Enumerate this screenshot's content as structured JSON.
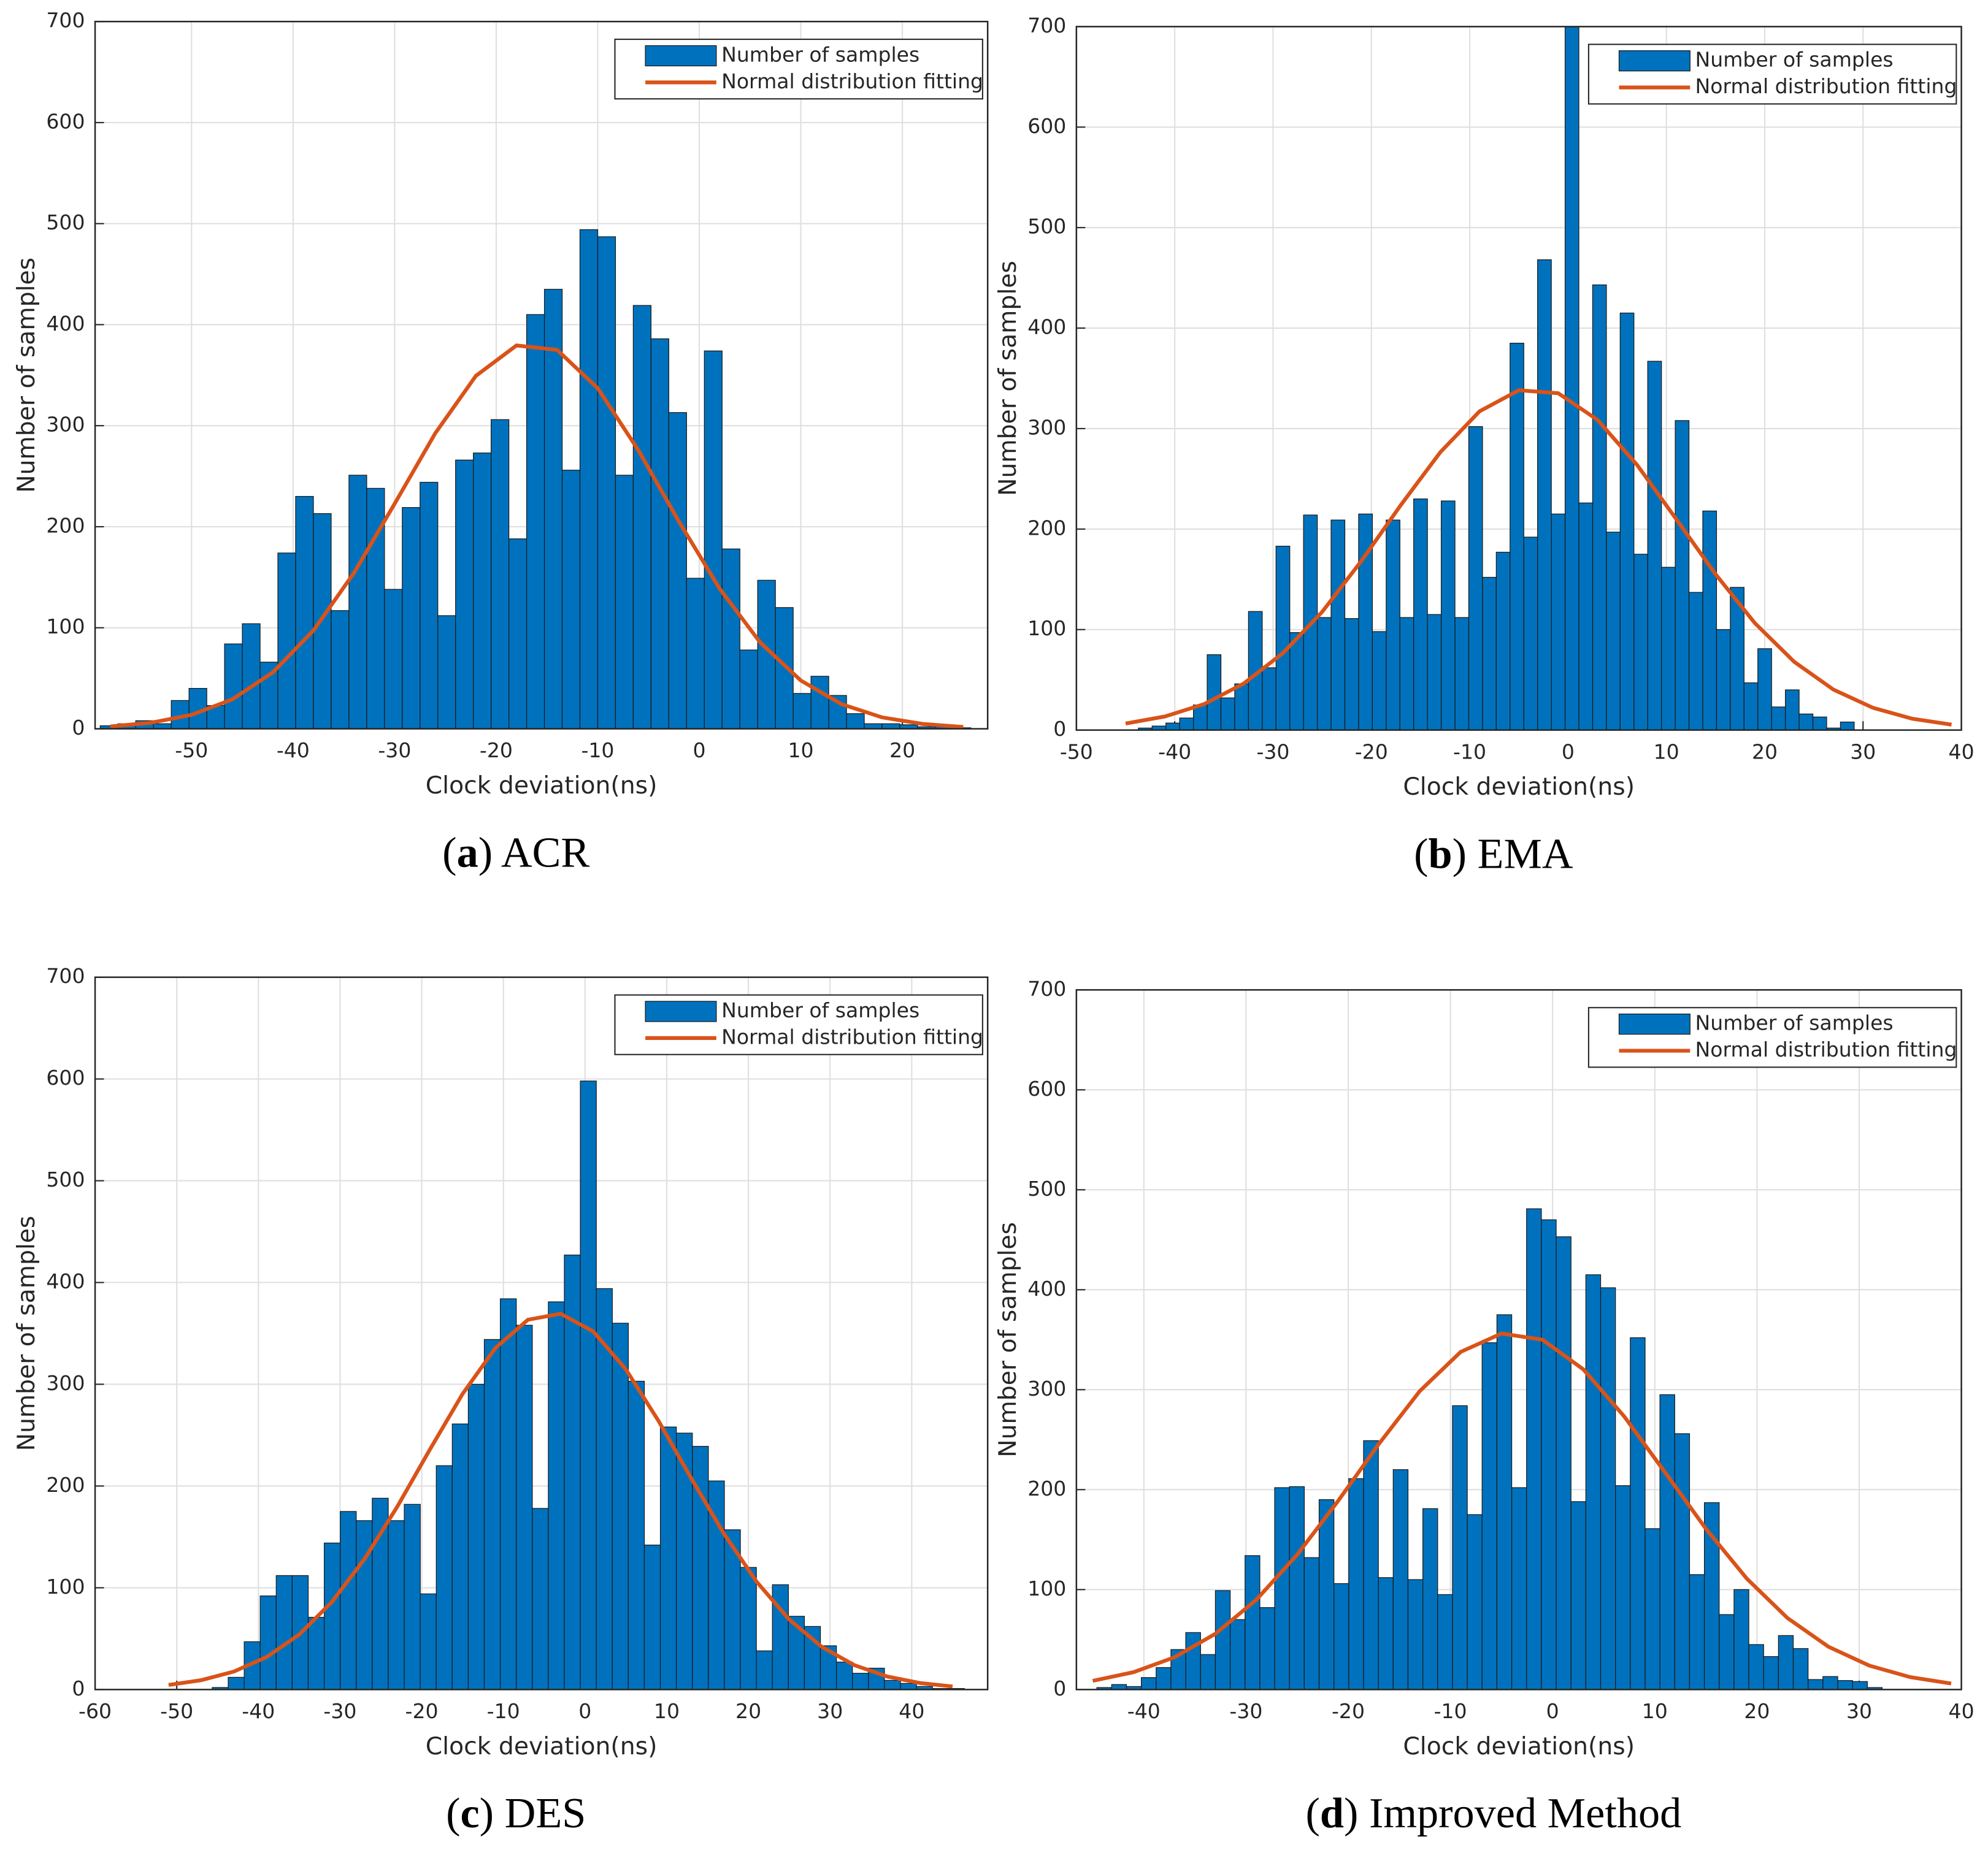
{
  "chart_data": [
    {
      "type": "histogram",
      "caption": [
        "(",
        "a",
        ") ACR"
      ],
      "xlabel": "Clock deviation(ns)",
      "ylabel": "Number of samples",
      "xlim": [
        -59.5,
        28.4
      ],
      "xticks": [
        -50,
        -40,
        -30,
        -20,
        -10,
        0,
        10,
        20
      ],
      "ylim": [
        0,
        700
      ],
      "yticks": [
        0,
        100,
        200,
        300,
        400,
        500,
        600,
        700
      ],
      "grid": true,
      "legend": "upper right",
      "bins": [
        -59,
        -57.25,
        -55.5,
        -53.75,
        -52,
        -50.25,
        -48.5,
        -46.75,
        -45,
        -43.25,
        -41.5,
        -39.75,
        -38,
        -36.25,
        -34.5,
        -32.75,
        -31,
        -29.25,
        -27.5,
        -25.75,
        -24,
        -22.25,
        -20.5,
        -18.75,
        -17,
        -15.25,
        -13.5,
        -11.75,
        -10,
        -8.25,
        -6.5,
        -4.75,
        -3,
        -1.25,
        0.5,
        2.25,
        4,
        5.75,
        7.5,
        9.25,
        11,
        12.75,
        14.5,
        16.25,
        18,
        19.75,
        21.5,
        23.25,
        25,
        26.75
      ],
      "series": [
        {
          "name": "Number of samples",
          "color": "#0072bd",
          "values": [
            3,
            5,
            8,
            5,
            28,
            40,
            23,
            84,
            104,
            66,
            174,
            230,
            213,
            117,
            251,
            238,
            138,
            219,
            244,
            112,
            266,
            273,
            306,
            188,
            410,
            435,
            256,
            494,
            487,
            251,
            419,
            386,
            313,
            149,
            374,
            178,
            78,
            147,
            120,
            35,
            52,
            33,
            15,
            5,
            5,
            4,
            2,
            2,
            1
          ]
        },
        {
          "name": "Normal distribution fitting",
          "color": "#d95319",
          "type": "line",
          "x": [
            -58,
            -54,
            -50,
            -46,
            -42,
            -38,
            -34,
            -30,
            -26,
            -22,
            -18,
            -14,
            -10,
            -6,
            -2,
            2,
            6,
            10,
            14,
            18,
            22,
            26
          ],
          "values": [
            2.3,
            6.0,
            13.8,
            29.1,
            55.8,
            97.3,
            154.4,
            222.8,
            292.5,
            349.3,
            379.4,
            375,
            337.1,
            275.7,
            205.1,
            138.8,
            85.4,
            47.8,
            24.4,
            11.3,
            4.8,
            1.8
          ]
        }
      ]
    },
    {
      "type": "histogram",
      "caption": [
        "(",
        "b",
        ") EMA"
      ],
      "xlabel": "Clock deviation(ns)",
      "ylabel": "Number of samples",
      "xlim": [
        -50,
        40
      ],
      "xticks": [
        -50,
        -40,
        -30,
        -20,
        -10,
        0,
        10,
        20,
        30,
        40
      ],
      "ylim": [
        0,
        700
      ],
      "yticks": [
        0,
        100,
        200,
        300,
        400,
        500,
        600,
        700
      ],
      "grid": true,
      "legend": "upper right",
      "bins": [
        -43.7,
        -42.3,
        -40.9,
        -39.5,
        -38.1,
        -36.7,
        -35.3,
        -33.9,
        -32.5,
        -31.1,
        -29.7,
        -28.3,
        -26.9,
        -25.5,
        -24.1,
        -22.7,
        -21.3,
        -19.9,
        -18.5,
        -17.1,
        -15.7,
        -14.3,
        -12.9,
        -11.5,
        -10.1,
        -8.7,
        -7.3,
        -5.9,
        -4.5,
        -3.1,
        -1.7,
        -0.3,
        1.1,
        2.5,
        3.9,
        5.3,
        6.7,
        8.1,
        9.5,
        10.9,
        12.3,
        13.7,
        15.1,
        16.5,
        17.9,
        19.3,
        20.7,
        22.1,
        23.5,
        24.9,
        26.3,
        27.7,
        29.1
      ],
      "series": [
        {
          "name": "Number of samples",
          "color": "#0072bd",
          "values": [
            2,
            4,
            7,
            12,
            25,
            75,
            32,
            46,
            118,
            62,
            183,
            97,
            214,
            112,
            209,
            111,
            215,
            98,
            209,
            112,
            230,
            115,
            228,
            112,
            302,
            152,
            177,
            385,
            192,
            468,
            215,
            700,
            226,
            443,
            197,
            415,
            175,
            367,
            162,
            308,
            137,
            218,
            100,
            142,
            47,
            81,
            23,
            40,
            16,
            13,
            2,
            8
          ]
        },
        {
          "name": "Normal distribution fitting",
          "color": "#d95319",
          "type": "line",
          "x": [
            -45,
            -41,
            -37,
            -33,
            -29,
            -25,
            -21,
            -17,
            -13,
            -9,
            -5,
            -1,
            3,
            7,
            11,
            15,
            19,
            23,
            27,
            31,
            35,
            39
          ],
          "values": [
            6.5,
            13.5,
            25.9,
            46.2,
            76.6,
            117.7,
            168.5,
            224,
            276.4,
            317.2,
            338.2,
            335.2,
            308.6,
            264.1,
            209.9,
            155.1,
            106.4,
            67.9,
            40.2,
            22.2,
            11.3,
            5.4
          ]
        }
      ]
    },
    {
      "type": "histogram",
      "caption": [
        "(",
        "c",
        ") DES"
      ],
      "xlabel": "Clock deviation(ns)",
      "ylabel": "Number of samples",
      "xlim": [
        -60,
        49.3
      ],
      "xticks": [
        -60,
        -50,
        -40,
        -30,
        -20,
        -10,
        0,
        10,
        20,
        30,
        40
      ],
      "ylim": [
        0,
        700
      ],
      "yticks": [
        0,
        100,
        200,
        300,
        400,
        500,
        600,
        700
      ],
      "grid": true,
      "legend": "upper right",
      "bins": [
        -45.66,
        -43.7,
        -41.74,
        -39.78,
        -37.82,
        -35.86,
        -33.9,
        -31.94,
        -29.98,
        -28.02,
        -26.06,
        -24.1,
        -22.14,
        -20.18,
        -18.22,
        -16.26,
        -14.3,
        -12.34,
        -10.38,
        -8.42,
        -6.46,
        -4.5,
        -2.54,
        -0.58,
        1.38,
        3.34,
        5.3,
        7.26,
        9.22,
        11.18,
        13.14,
        15.1,
        17.06,
        19.02,
        20.98,
        22.94,
        24.9,
        26.86,
        28.82,
        30.78,
        32.74,
        34.7,
        36.66,
        38.62,
        40.58,
        42.54,
        44.5,
        46.46
      ],
      "series": [
        {
          "name": "Number of samples",
          "color": "#0072bd",
          "values": [
            2,
            12,
            47,
            92,
            112,
            112,
            71,
            144,
            175,
            166,
            188,
            166,
            182,
            94,
            220,
            261,
            300,
            344,
            384,
            358,
            178,
            381,
            427,
            598,
            394,
            360,
            303,
            142,
            258,
            252,
            239,
            205,
            157,
            120,
            38,
            103,
            72,
            62,
            43,
            27,
            16,
            21,
            9,
            6,
            3,
            1,
            1
          ]
        },
        {
          "name": "Normal distribution fitting",
          "color": "#d95319",
          "type": "line",
          "x": [
            -51,
            -47,
            -43,
            -39,
            -35,
            -31,
            -27,
            -23,
            -19,
            -15,
            -11,
            -7,
            -3,
            1,
            5,
            9,
            13,
            17,
            21,
            25,
            29,
            33,
            37,
            41,
            45
          ],
          "values": [
            4.5,
            9.2,
            17.7,
            31.9,
            54.1,
            86.1,
            128.4,
            179.7,
            235.9,
            290.5,
            335.4,
            363.4,
            369.3,
            351.9,
            314.6,
            263.9,
            207.6,
            153.2,
            106,
            68.8,
            41.9,
            23.9,
            12.8,
            6.4,
            3.0
          ]
        }
      ]
    },
    {
      "type": "histogram",
      "caption": [
        "(",
        "d",
        ") Improved Method"
      ],
      "xlabel": "Clock deviation(ns)",
      "ylabel": "Number of samples",
      "xlim": [
        -46.6,
        40
      ],
      "xticks": [
        -40,
        -30,
        -20,
        -10,
        0,
        10,
        20,
        30,
        40
      ],
      "ylim": [
        0,
        700
      ],
      "yticks": [
        0,
        100,
        200,
        300,
        400,
        500,
        600,
        700
      ],
      "grid": true,
      "legend": "upper right",
      "bins": [
        -44.6,
        -43.15,
        -41.7,
        -40.25,
        -38.8,
        -37.35,
        -35.9,
        -34.45,
        -33,
        -31.55,
        -30.1,
        -28.65,
        -27.2,
        -25.75,
        -24.3,
        -22.85,
        -21.4,
        -19.95,
        -18.5,
        -17.05,
        -15.6,
        -14.15,
        -12.7,
        -11.25,
        -9.8,
        -8.35,
        -6.9,
        -5.45,
        -4,
        -2.55,
        -1.1,
        0.35,
        1.8,
        3.25,
        4.7,
        6.15,
        7.6,
        9.05,
        10.5,
        11.95,
        13.4,
        14.85,
        16.3,
        17.75,
        19.2,
        20.65,
        22.1,
        23.55,
        25,
        26.45,
        27.9,
        29.35,
        30.8,
        32.25
      ],
      "series": [
        {
          "name": "Number of samples",
          "color": "#0072bd",
          "values": [
            2,
            5,
            3,
            12,
            22,
            40,
            57,
            35,
            99,
            70,
            134,
            82,
            202,
            203,
            132,
            190,
            106,
            211,
            249,
            112,
            220,
            110,
            181,
            95,
            284,
            175,
            347,
            375,
            202,
            481,
            470,
            453,
            188,
            415,
            402,
            204,
            352,
            161,
            295,
            256,
            115,
            187,
            75,
            100,
            45,
            33,
            54,
            41,
            10,
            13,
            9,
            8,
            2
          ]
        },
        {
          "name": "Normal distribution fitting",
          "color": "#d95319",
          "type": "line",
          "x": [
            -45,
            -41,
            -37,
            -33,
            -29,
            -25,
            -21,
            -17,
            -13,
            -9,
            -5,
            -1,
            3,
            7,
            11,
            15,
            19,
            23,
            27,
            31,
            35,
            39
          ],
          "values": [
            8.7,
            17.4,
            32.3,
            55.8,
            89.8,
            134.9,
            188.6,
            245.8,
            298.6,
            337.8,
            356.2,
            350,
            320.4,
            273.3,
            217.3,
            160.9,
            111,
            71.4,
            42.8,
            23.9,
            12.4,
            6.0
          ]
        }
      ]
    }
  ]
}
